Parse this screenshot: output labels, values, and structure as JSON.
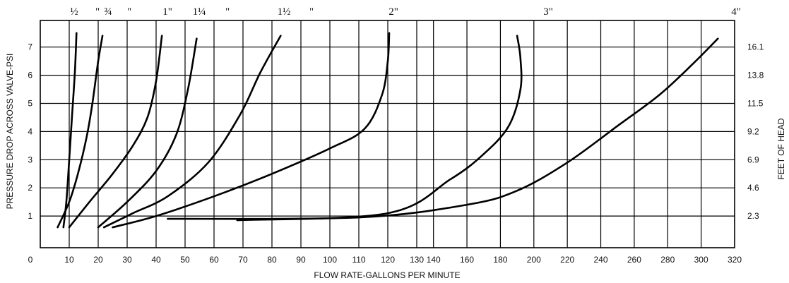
{
  "chart_data": {
    "type": "line",
    "xlabel": "FLOW RATE-GALLONS PER MINUTE",
    "ylabel": "PRESSURE DROP ACROSS VALVE-PSI",
    "y2label": "FEET OF HEAD",
    "xlim": [
      0,
      320
    ],
    "ylim": [
      0,
      8
    ],
    "x_ticks_low": [
      "0",
      "10",
      "20",
      "30",
      "40",
      "50",
      "60",
      "70",
      "80",
      "90",
      "100",
      "110",
      "120"
    ],
    "x_ticks_high": [
      "130",
      "140",
      "160",
      "180",
      "200",
      "220",
      "240",
      "260",
      "280",
      "300",
      "320"
    ],
    "y_ticks": [
      "1",
      "2",
      "3",
      "4",
      "5",
      "6",
      "7"
    ],
    "y2_ticks": [
      "2.3",
      "4.6",
      "6.9",
      "9.2",
      "11.5",
      "13.8",
      "16.1"
    ],
    "grid": true,
    "series": [
      {
        "name": "½",
        "x": [
          8,
          9,
          10,
          11,
          12,
          12.5
        ],
        "y": [
          0.6,
          1.5,
          3.0,
          4.6,
          6.2,
          7.5
        ]
      },
      {
        "name": "¾",
        "x": [
          6,
          10,
          13,
          16,
          18,
          20,
          21.5
        ],
        "y": [
          0.6,
          1.5,
          2.5,
          3.8,
          5.0,
          6.5,
          7.4
        ]
      },
      {
        "name": "1",
        "x": [
          10,
          17,
          25,
          32,
          37,
          40,
          42
        ],
        "y": [
          0.6,
          1.5,
          2.5,
          3.5,
          4.5,
          5.8,
          7.4
        ]
      },
      {
        "name": "1¼",
        "x": [
          20,
          30,
          40,
          47,
          51,
          54
        ],
        "y": [
          0.6,
          1.5,
          2.6,
          3.9,
          5.5,
          7.3
        ]
      },
      {
        "name": "1½",
        "x": [
          22,
          32,
          44,
          58,
          69,
          76,
          83
        ],
        "y": [
          0.6,
          1.1,
          1.7,
          2.9,
          4.6,
          6.1,
          7.4
        ]
      },
      {
        "name": "2",
        "x": [
          25,
          40,
          60,
          80,
          100,
          112,
          118,
          120,
          120.5
        ],
        "y": [
          0.6,
          1.0,
          1.7,
          2.5,
          3.4,
          4.1,
          5.3,
          6.5,
          7.5
        ]
      },
      {
        "name": "3",
        "x": [
          68,
          120,
          150,
          170,
          185,
          192,
          192,
          190
        ],
        "y": [
          0.85,
          1.1,
          2.3,
          3.2,
          4.2,
          5.5,
          6.6,
          7.4
        ]
      },
      {
        "name": "4",
        "x": [
          44,
          110,
          160,
          190,
          220,
          250,
          275,
          295,
          310
        ],
        "y": [
          0.9,
          0.95,
          1.4,
          1.9,
          2.9,
          4.2,
          5.3,
          6.4,
          7.3
        ]
      }
    ],
    "series_labels": [
      "½",
      "\"",
      "¾",
      "\"",
      "1\"",
      "1¼",
      "\"",
      "1½",
      "\"",
      "2\"",
      "3\"",
      "4\""
    ]
  }
}
